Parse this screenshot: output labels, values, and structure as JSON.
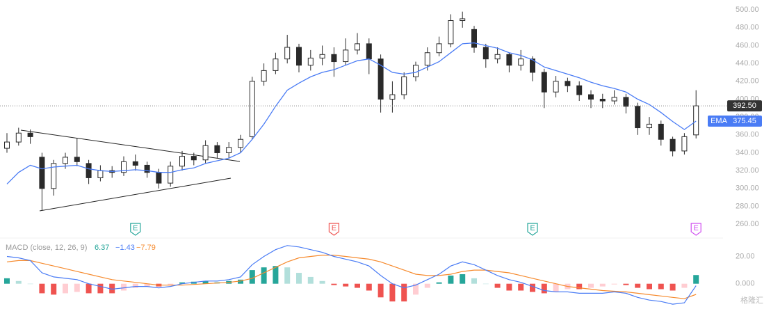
{
  "chart_data": {
    "type": "candlestick",
    "open": [
      345,
      352,
      362,
      335,
      300,
      328,
      335,
      328,
      312,
      320,
      318,
      330,
      326,
      318,
      306,
      325,
      336,
      332,
      348,
      340,
      346,
      358,
      420,
      432,
      445,
      458,
      438,
      446,
      450,
      442,
      455,
      462,
      445,
      400,
      405,
      425,
      438,
      452,
      462,
      488,
      478,
      458,
      445,
      450,
      438,
      445,
      430,
      408,
      420,
      415,
      405,
      400,
      398,
      402,
      392,
      368,
      372,
      355,
      342,
      360
    ],
    "high": [
      362,
      368,
      366,
      340,
      332,
      340,
      356,
      332,
      326,
      325,
      336,
      338,
      330,
      322,
      330,
      342,
      340,
      354,
      352,
      352,
      360,
      425,
      440,
      452,
      472,
      462,
      455,
      460,
      458,
      468,
      474,
      468,
      450,
      420,
      430,
      442,
      458,
      470,
      495,
      498,
      482,
      462,
      458,
      452,
      455,
      448,
      434,
      426,
      424,
      420,
      410,
      406,
      410,
      406,
      396,
      380,
      376,
      358,
      362,
      410
    ],
    "low": [
      340,
      348,
      350,
      275,
      292,
      322,
      325,
      305,
      308,
      312,
      314,
      320,
      312,
      300,
      302,
      320,
      326,
      328,
      334,
      334,
      340,
      355,
      415,
      428,
      440,
      430,
      432,
      438,
      425,
      438,
      450,
      428,
      385,
      385,
      400,
      420,
      432,
      448,
      458,
      480,
      452,
      435,
      440,
      430,
      432,
      420,
      390,
      402,
      408,
      398,
      390,
      390,
      394,
      384,
      360,
      360,
      348,
      336,
      338,
      356
    ],
    "close": [
      352,
      362,
      358,
      300,
      328,
      335,
      330,
      312,
      320,
      318,
      330,
      326,
      318,
      306,
      325,
      336,
      332,
      348,
      340,
      346,
      355,
      420,
      432,
      445,
      458,
      438,
      446,
      450,
      442,
      455,
      462,
      445,
      400,
      405,
      425,
      438,
      452,
      462,
      488,
      490,
      458,
      445,
      450,
      438,
      445,
      430,
      408,
      420,
      415,
      405,
      400,
      398,
      402,
      392,
      368,
      372,
      355,
      342,
      358,
      392.5
    ],
    "up_color": "#ffffff",
    "down_color": "#2a2a2a",
    "wick_color": "#2a2a2a",
    "ylim": [
      250,
      511
    ],
    "yticks": [
      {
        "value": 260,
        "label": "260.00"
      },
      {
        "value": 280,
        "label": "280.00"
      },
      {
        "value": 300,
        "label": "300.00"
      },
      {
        "value": 320,
        "label": "320.00"
      },
      {
        "value": 340,
        "label": "340.00"
      },
      {
        "value": 360,
        "label": "360.00"
      },
      {
        "value": 380,
        "label": "380.00"
      },
      {
        "value": 400,
        "label": "400.00"
      },
      {
        "value": 420,
        "label": "420.00"
      },
      {
        "value": 440,
        "label": "440.00"
      },
      {
        "value": 460,
        "label": "460.00"
      },
      {
        "value": 480,
        "label": "480.00"
      },
      {
        "value": 500,
        "label": "500.00"
      }
    ],
    "last_price": {
      "value": 392.5,
      "label": "392.50",
      "color": "#333333"
    },
    "ema": {
      "name": "EMA",
      "color": "#4a7cf5",
      "last_label": "375.45",
      "values": [
        305,
        318,
        326,
        322,
        324,
        325,
        326,
        322,
        320,
        319,
        320,
        321,
        320,
        318,
        318,
        321,
        323,
        328,
        331,
        334,
        340,
        355,
        372,
        392,
        410,
        418,
        425,
        430,
        433,
        438,
        443,
        445,
        438,
        430,
        428,
        430,
        436,
        442,
        452,
        462,
        463,
        460,
        457,
        452,
        449,
        444,
        436,
        432,
        428,
        424,
        419,
        415,
        412,
        408,
        400,
        394,
        385,
        375,
        366,
        375.45
      ]
    },
    "events": [
      {
        "index": 11,
        "label": "E",
        "color": "#26a69a"
      },
      {
        "index": 28,
        "label": "E",
        "color": "#ef5350"
      },
      {
        "index": 45,
        "label": "E",
        "color": "#26a69a"
      },
      {
        "index": 59,
        "label": "E",
        "color": "#d050f0"
      }
    ],
    "macd": {
      "type": "macd",
      "title": "MACD (close, 12, 26, 9)",
      "ylim": [
        -17,
        32
      ],
      "yticks": [
        {
          "value": 0,
          "label": "0.000"
        },
        {
          "value": 20,
          "label": "20.00"
        }
      ],
      "histogram": {
        "last_label": "6.37",
        "color": "#26a69a",
        "light_color": "#b2dfdb",
        "neg_color": "#ef5350",
        "neg_light_color": "#ffcdd2",
        "values": [
          4,
          2,
          0,
          -7,
          -8,
          -7,
          -6,
          -7,
          -7,
          -7,
          -5,
          -3,
          -2,
          -2,
          -1,
          1,
          1.5,
          2,
          1.5,
          2,
          3,
          10,
          12,
          13,
          12,
          8,
          5,
          2,
          -1,
          -2,
          -3,
          -5,
          -10,
          -13,
          -13,
          -8,
          -3,
          1,
          6,
          7,
          4,
          0,
          -3,
          -5,
          -5,
          -6,
          -7,
          -6,
          -4,
          -4,
          -3,
          -2,
          -0.5,
          -1,
          -3,
          -4,
          -4,
          -5,
          -3,
          6.37
        ]
      },
      "line": {
        "color": "#4a7cf5",
        "last_label": "−1.43",
        "values": [
          20,
          19,
          17,
          8,
          5,
          4,
          3,
          0,
          -2,
          -4,
          -3,
          -2,
          -2,
          -3,
          -2,
          0,
          1,
          2,
          2,
          3,
          5,
          14,
          20,
          25,
          28,
          27,
          25,
          23,
          20,
          18,
          16,
          13,
          6,
          0,
          -3,
          -1,
          3,
          7,
          13,
          16,
          14,
          10,
          6,
          3,
          1,
          -2,
          -5,
          -6,
          -6,
          -7,
          -7,
          -7,
          -6,
          -7,
          -10,
          -12,
          -13,
          -15,
          -14,
          -1.43
        ]
      },
      "signal": {
        "color": "#f68a2d",
        "last_label": "−7.79",
        "values": [
          16,
          17,
          17,
          15,
          13,
          11,
          9,
          7,
          5,
          3,
          2,
          1,
          0,
          -1,
          -1,
          -1,
          -0.5,
          0,
          0.5,
          1,
          2,
          4,
          8,
          12,
          16,
          19,
          20,
          21,
          21,
          20,
          19,
          18,
          16,
          13,
          10,
          7,
          6,
          6,
          7,
          9,
          10,
          10,
          9,
          8,
          6,
          4,
          2,
          0,
          -2,
          -3,
          -4,
          -5,
          -5.5,
          -6,
          -7,
          -8,
          -9,
          -10,
          -11,
          -7.79
        ]
      }
    }
  },
  "watermark": "格隆汇"
}
